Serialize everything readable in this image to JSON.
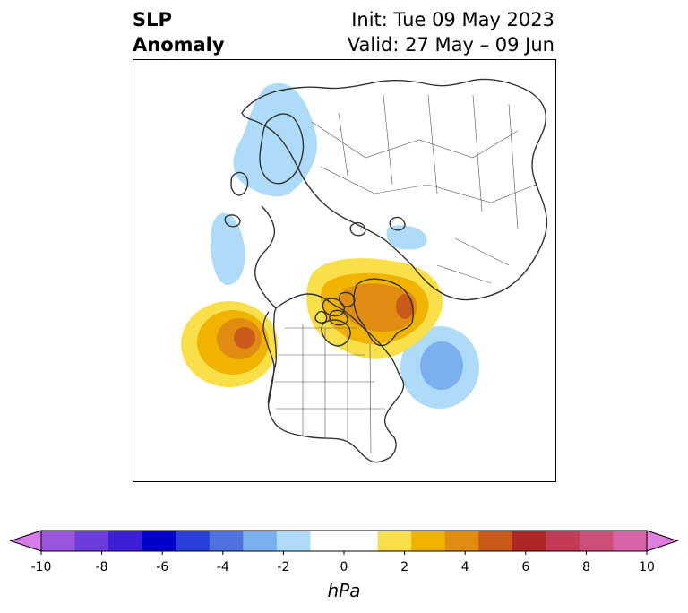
{
  "title": {
    "left_line1": "SLP",
    "left_line2": "Anomaly",
    "right_line1": "Init: Tue 09 May 2023",
    "right_line2": "Valid: 27 May – 09 Jun"
  },
  "colorbar": {
    "unit": "hPa",
    "tick_labels": [
      "-10",
      "-8",
      "-6",
      "-4",
      "-2",
      "0",
      "2",
      "4",
      "6",
      "8",
      "10"
    ],
    "low_extend_color": "#d67be8",
    "high_extend_color": "#e07ee0",
    "colors": [
      "#d67be8",
      "#9b56e0",
      "#6b3ddc",
      "#3d1fd6",
      "#0000cc",
      "#2a3ed8",
      "#4f72e0",
      "#7bb0f0",
      "#aedbf7",
      "#ffffff",
      "#ffffff",
      "#f9df4a",
      "#f0b400",
      "#e08c10",
      "#c95a1a",
      "#b02525",
      "#c33a55",
      "#cd4e78",
      "#d862a6",
      "#e07ee0"
    ]
  },
  "map": {
    "anomalies": [
      {
        "region": "Northern Europe / Scandinavia",
        "sign": "negative",
        "peak_hpa": -2.5
      },
      {
        "region": "Far North Atlantic",
        "sign": "negative",
        "peak_hpa": -1.5
      },
      {
        "region": "Laptev Sea",
        "sign": "negative",
        "peak_hpa": -1.5
      },
      {
        "region": "Greenland / Canadian Arctic",
        "sign": "positive",
        "peak_hpa": 5
      },
      {
        "region": "Northeast Pacific",
        "sign": "positive",
        "peak_hpa": 5
      },
      {
        "region": "Northwest Atlantic off Newfoundland",
        "sign": "negative",
        "peak_hpa": -3
      }
    ]
  }
}
